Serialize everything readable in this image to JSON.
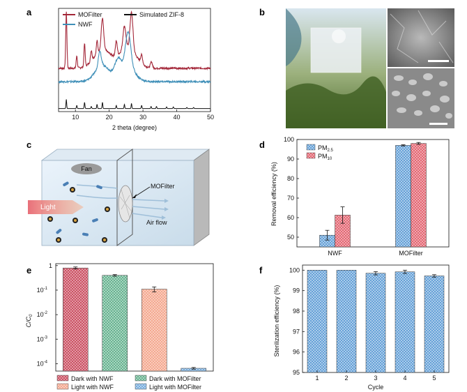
{
  "panel_labels": {
    "a": "a",
    "b": "b",
    "c": "c",
    "d": "d",
    "e": "e",
    "f": "f"
  },
  "colors": {
    "mofilter": "#a32638",
    "nwf": "#3f8fb8",
    "simulated": "#111111",
    "pm25": "#5b9bd5",
    "pm10": "#e35d6a",
    "dark_nwf": "#c8475a",
    "dark_mof": "#5fae8a",
    "light_nwf": "#f4a48a",
    "light_mof": "#6fa8dc",
    "sterilization": "#5b9bd5"
  },
  "chart_data": [
    {
      "panel": "a",
      "type": "line",
      "xlabel": "2 theta (degree)",
      "xlim": [
        5,
        50
      ],
      "xticks": [
        10,
        20,
        30,
        40,
        50
      ],
      "legend": [
        {
          "name": "MOFilter",
          "color_key": "mofilter"
        },
        {
          "name": "NWF",
          "color_key": "nwf"
        },
        {
          "name": "Simulated ZIF-8",
          "color_key": "simulated"
        }
      ],
      "series": [
        {
          "name": "MOFilter",
          "offset": 0.42,
          "peaks": [
            [
              7.3,
              0.55,
              0.25
            ],
            [
              10.4,
              0.12,
              0.25
            ],
            [
              12.7,
              0.22,
              0.25
            ],
            [
              14.7,
              0.1,
              0.3
            ],
            [
              16.4,
              0.12,
              0.3
            ],
            [
              18.0,
              0.3,
              0.5
            ],
            [
              22.1,
              0.14,
              0.4
            ],
            [
              24.5,
              0.22,
              0.6
            ],
            [
              26.6,
              0.36,
              0.6
            ],
            [
              29.6,
              0.08,
              0.4
            ],
            [
              32.5,
              0.06,
              0.4
            ]
          ],
          "halo": [
            [
              18,
              0.18,
              3.5
            ],
            [
              25.5,
              0.2,
              3.5
            ]
          ]
        },
        {
          "name": "NWF",
          "offset": 0.29,
          "peaks": [
            [
              17.2,
              0.15,
              0.6
            ],
            [
              22.6,
              0.16,
              1.4
            ],
            [
              25.6,
              0.34,
              1.1
            ]
          ],
          "halo": [
            [
              18,
              0.16,
              3.0
            ],
            [
              25.5,
              0.14,
              3.0
            ]
          ]
        },
        {
          "name": "Simulated ZIF-8",
          "offset": 0.03,
          "peaks": [
            [
              7.3,
              0.09,
              0.15
            ],
            [
              10.4,
              0.03,
              0.15
            ],
            [
              12.7,
              0.06,
              0.15
            ],
            [
              14.7,
              0.02,
              0.15
            ],
            [
              16.4,
              0.04,
              0.15
            ],
            [
              18.0,
              0.06,
              0.15
            ],
            [
              22.1,
              0.03,
              0.15
            ],
            [
              24.5,
              0.04,
              0.15
            ],
            [
              26.6,
              0.05,
              0.15
            ],
            [
              29.6,
              0.03,
              0.15
            ],
            [
              32.4,
              0.02,
              0.15
            ],
            [
              34.0,
              0.02,
              0.15
            ],
            [
              37.0,
              0.015,
              0.15
            ],
            [
              39.0,
              0.015,
              0.15
            ],
            [
              43.0,
              0.01,
              0.15
            ],
            [
              45.0,
              0.01,
              0.15
            ]
          ],
          "halo": []
        }
      ]
    },
    {
      "panel": "d",
      "type": "bar",
      "ylabel": "Removal efficiency (%)",
      "ylim": [
        45,
        100
      ],
      "yticks": [
        50,
        60,
        70,
        80,
        90,
        100
      ],
      "categories": [
        "NWF",
        "MOFilter"
      ],
      "legend": [
        {
          "name": "PM",
          "sub": "2.5",
          "color_key": "pm25"
        },
        {
          "name": "PM",
          "sub": "10",
          "color_key": "pm10"
        }
      ],
      "series": [
        {
          "name": "PM2.5",
          "values": [
            51,
            97
          ],
          "errors": [
            2.5,
            0.3
          ],
          "color_key": "pm25"
        },
        {
          "name": "PM10",
          "values": [
            61.3,
            98
          ],
          "errors": [
            4.2,
            0.5
          ],
          "color_key": "pm10"
        }
      ]
    },
    {
      "panel": "e",
      "type": "bar",
      "scale": "log",
      "ylabel": "C/C",
      "ylabel_sub": "0",
      "ylim": [
        5e-05,
        1.2
      ],
      "yticks": [
        {
          "base": "1",
          "exp": ""
        },
        {
          "base": "10",
          "exp": "-1"
        },
        {
          "base": "10",
          "exp": "-2"
        },
        {
          "base": "10",
          "exp": "-3"
        },
        {
          "base": "10",
          "exp": "-4"
        }
      ],
      "ytick_values": [
        1,
        0.1,
        0.01,
        0.001,
        0.0001
      ],
      "bars": [
        {
          "name": "Dark with NWF",
          "value": 0.8,
          "err_up": 0.88,
          "err_lo": 0.73,
          "color_key": "dark_nwf"
        },
        {
          "name": "Dark with MOFilter",
          "value": 0.4,
          "err_up": 0.43,
          "err_lo": 0.37,
          "color_key": "dark_mof"
        },
        {
          "name": "Light with NWF",
          "value": 0.11,
          "err_up": 0.135,
          "err_lo": 0.085,
          "color_key": "light_nwf"
        },
        {
          "name": "Light with MOFilter",
          "value": 6.5e-05,
          "err_up": 7e-05,
          "err_lo": 6e-05,
          "color_key": "light_mof"
        }
      ]
    },
    {
      "panel": "f",
      "type": "bar",
      "ylabel": "Sterilization efficiency (%)",
      "xlabel": "Cycle",
      "ylim": [
        95,
        100.25
      ],
      "yticks": [
        95,
        96,
        97,
        98,
        99,
        100
      ],
      "categories": [
        "1",
        "2",
        "3",
        "4",
        "5"
      ],
      "values": [
        100.0,
        100.0,
        99.85,
        99.92,
        99.72
      ],
      "errors": [
        0.0,
        0.0,
        0.08,
        0.08,
        0.06
      ],
      "color_key": "sterilization"
    }
  ],
  "panel_b": {
    "photo_description_omitted": ""
  },
  "panel_c": {
    "fan_label": "Fan",
    "light_label": "Light",
    "filter_label": "MOFilter",
    "airflow_label": "Air flow"
  }
}
